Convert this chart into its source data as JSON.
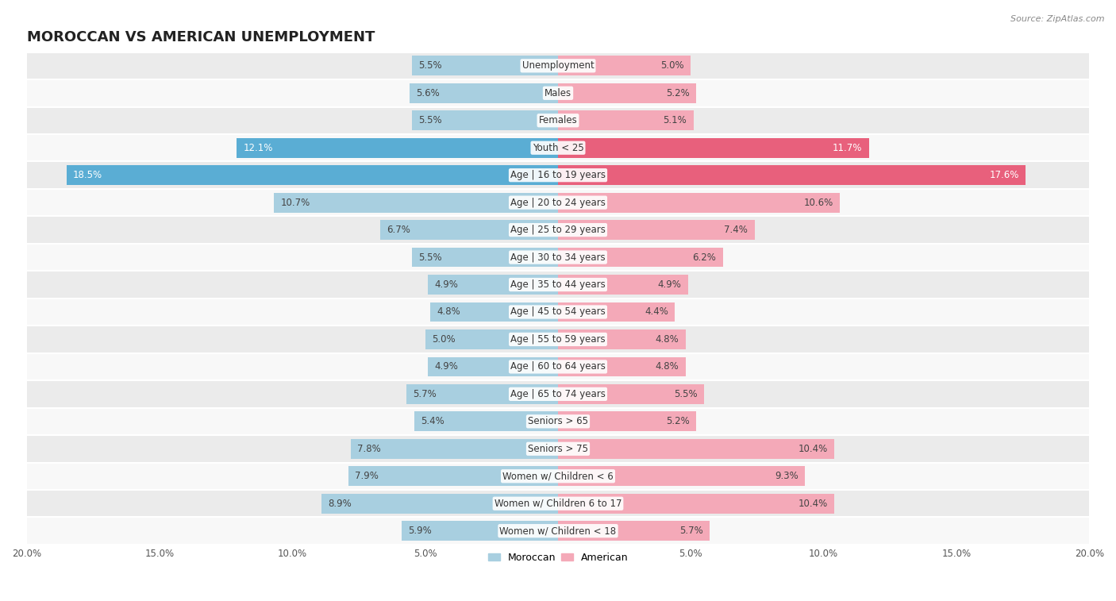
{
  "title": "MOROCCAN VS AMERICAN UNEMPLOYMENT",
  "source": "Source: ZipAtlas.com",
  "categories": [
    "Unemployment",
    "Males",
    "Females",
    "Youth < 25",
    "Age | 16 to 19 years",
    "Age | 20 to 24 years",
    "Age | 25 to 29 years",
    "Age | 30 to 34 years",
    "Age | 35 to 44 years",
    "Age | 45 to 54 years",
    "Age | 55 to 59 years",
    "Age | 60 to 64 years",
    "Age | 65 to 74 years",
    "Seniors > 65",
    "Seniors > 75",
    "Women w/ Children < 6",
    "Women w/ Children 6 to 17",
    "Women w/ Children < 18"
  ],
  "moroccan": [
    5.5,
    5.6,
    5.5,
    12.1,
    18.5,
    10.7,
    6.7,
    5.5,
    4.9,
    4.8,
    5.0,
    4.9,
    5.7,
    5.4,
    7.8,
    7.9,
    8.9,
    5.9
  ],
  "american": [
    5.0,
    5.2,
    5.1,
    11.7,
    17.6,
    10.6,
    7.4,
    6.2,
    4.9,
    4.4,
    4.8,
    4.8,
    5.5,
    5.2,
    10.4,
    9.3,
    10.4,
    5.7
  ],
  "moroccan_color": "#a8cfe0",
  "american_color": "#f4a9b8",
  "moroccan_highlight_color": "#5aadd4",
  "american_highlight_color": "#e8607c",
  "highlight_rows": [
    3,
    4
  ],
  "xlim": 20.0,
  "bar_height": 0.72,
  "bg_color_odd": "#ebebeb",
  "bg_color_even": "#f8f8f8",
  "label_fontsize": 8.5,
  "category_fontsize": 8.5,
  "title_fontsize": 13,
  "legend_moroccan": "Moroccan",
  "legend_american": "American",
  "x_tick_labels": [
    "20.0%",
    "15.0%",
    "10.0%",
    "5.0%",
    "",
    "5.0%",
    "10.0%",
    "15.0%",
    "20.0%"
  ],
  "x_ticks": [
    -20,
    -15,
    -10,
    -5,
    0,
    5,
    10,
    15,
    20
  ]
}
